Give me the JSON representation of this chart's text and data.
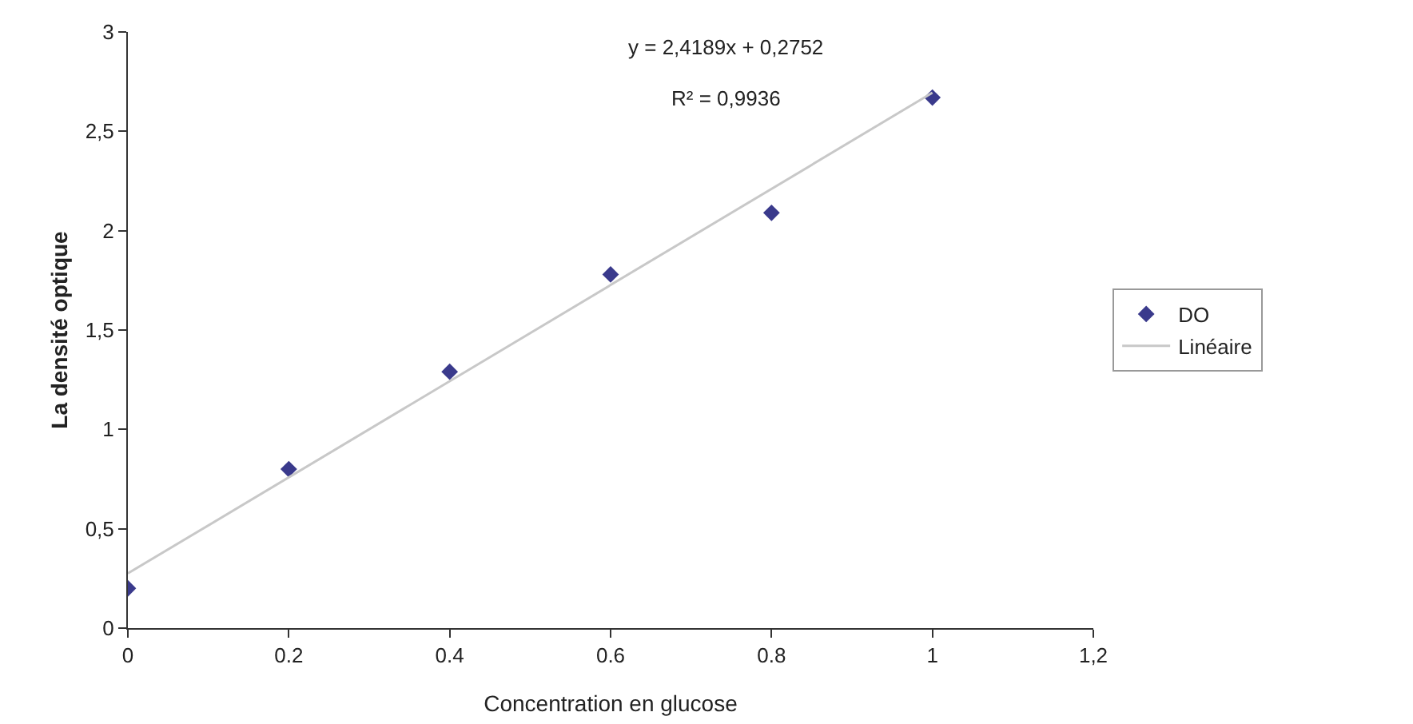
{
  "chart_data": {
    "type": "scatter",
    "xlabel": "Concentration en glucose",
    "ylabel": "La densité optique",
    "annotations": [
      "y = 2,4189x + 0,2752",
      "R² = 0,9936"
    ],
    "x": [
      0,
      0.2,
      0.4,
      0.6,
      0.8,
      1
    ],
    "series": [
      {
        "name": "DO",
        "color": "#3a3a8c",
        "values": [
          0.2,
          0.8,
          1.29,
          1.78,
          2.09,
          2.67
        ],
        "marker": "diamond"
      },
      {
        "name": "Linéaire",
        "type": "line",
        "color": "#c8c8c8",
        "x": [
          0,
          1
        ],
        "values": [
          0.2752,
          2.6941
        ],
        "marker": "none",
        "line_style": "solid"
      }
    ],
    "xlim": [
      0,
      1.2
    ],
    "xticks": [
      0,
      {
        "value": 0.2,
        "label": "0.2"
      },
      {
        "value": 0.4,
        "label": "0.4"
      },
      {
        "value": 0.6,
        "label": "0.6"
      },
      {
        "value": 0.8,
        "label": "0.8"
      },
      1,
      {
        "value": 1.2,
        "label": "1,2"
      }
    ],
    "ylim": [
      0,
      3
    ],
    "yticks": [
      0,
      {
        "value": 0.5,
        "label": "0,5"
      },
      1,
      {
        "value": 1.5,
        "label": "1,5"
      },
      2,
      {
        "value": 2.5,
        "label": "2,5"
      },
      3
    ],
    "grid": false,
    "legend": "right"
  }
}
